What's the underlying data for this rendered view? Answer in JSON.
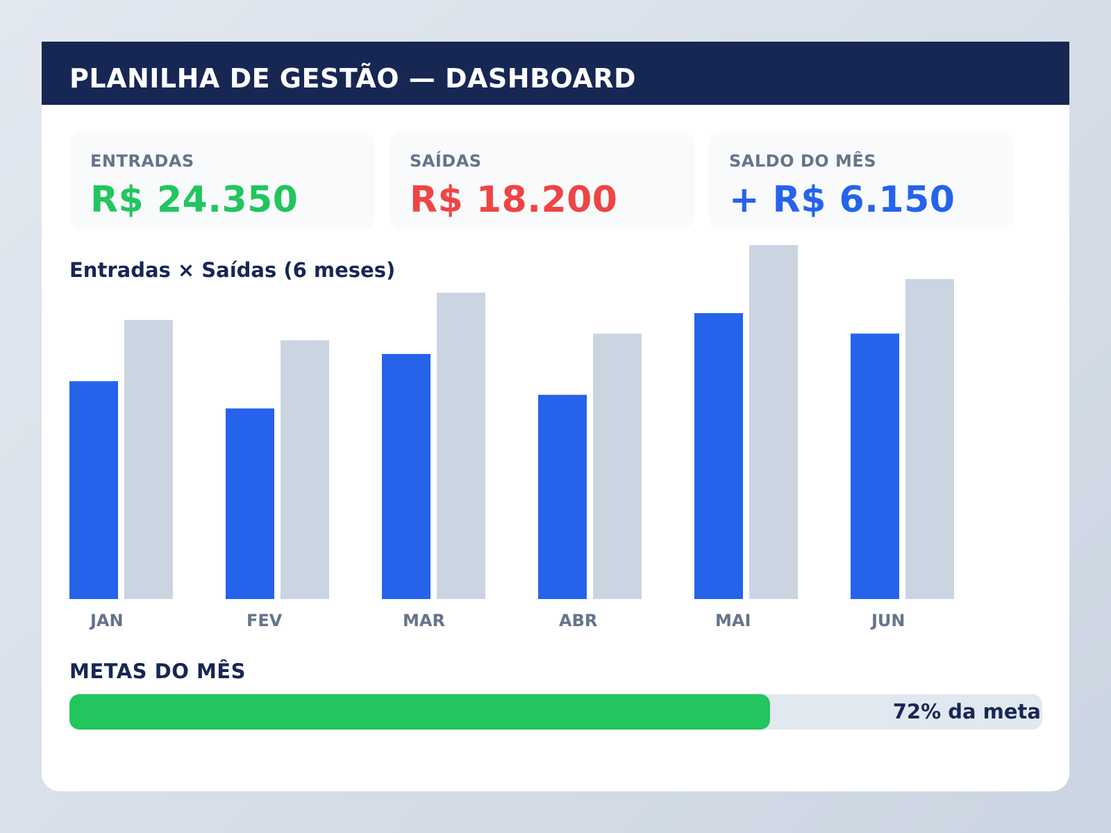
{
  "header": {
    "title": "PLANILHA DE GESTÃO — DASHBOARD"
  },
  "kpis": [
    {
      "label": "ENTRADAS",
      "value": "R$ 24.350",
      "color": "#22c55e"
    },
    {
      "label": "SAÍDAS",
      "value": "R$ 18.200",
      "color": "#ef4444"
    },
    {
      "label": "SALDO DO MÊS",
      "value": "+ R$ 6.150",
      "color": "#2563eb"
    }
  ],
  "chart": {
    "title": "Entradas × Saídas (6 meses)"
  },
  "chart_data": {
    "type": "bar",
    "title": "Entradas × Saídas (6 meses)",
    "categories": [
      "JAN",
      "FEV",
      "MAR",
      "ABR",
      "MAI",
      "JUN"
    ],
    "series": [
      {
        "values": [
          64,
          56,
          72,
          60,
          84,
          78
        ],
        "color": "#2563eb"
      },
      {
        "values": [
          82,
          76,
          90,
          78,
          104,
          94
        ],
        "color": "#cbd5e1"
      }
    ],
    "ylim": [
      0,
      104
    ],
    "grid": false,
    "legend": "none"
  },
  "goals": {
    "title": "METAS DO MÊS",
    "progress": 0.72,
    "label": "72% da meta",
    "color": "#22c55e"
  }
}
